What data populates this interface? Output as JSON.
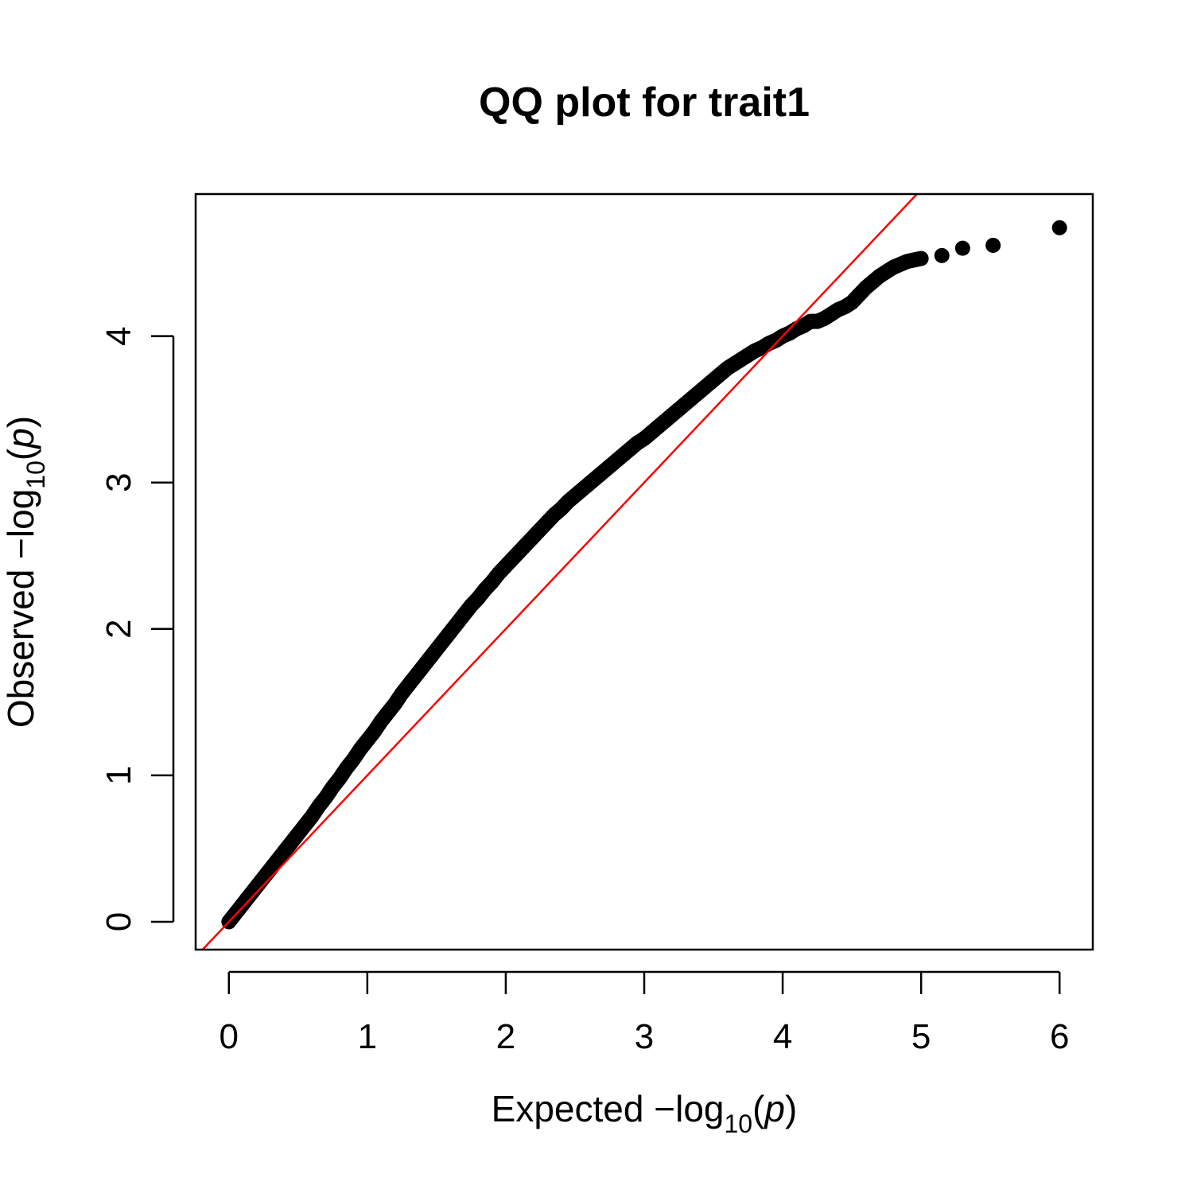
{
  "chart_data": {
    "type": "scatter",
    "title": "QQ plot for trait1",
    "xlabel": {
      "prefix": "Expected  −log",
      "sub": "10",
      "open": "(",
      "var": "p",
      "close": ")"
    },
    "ylabel": {
      "prefix": "Observed  −log",
      "sub": "10",
      "open": "(",
      "var": "p",
      "close": ")"
    },
    "xlim": [
      -0.24,
      6.24
    ],
    "ylim": [
      -0.19,
      4.97
    ],
    "xticks": [
      "0",
      "1",
      "2",
      "3",
      "4",
      "5",
      "6"
    ],
    "yticks": [
      "0",
      "1",
      "2",
      "3",
      "4"
    ],
    "grid": false,
    "reference_line": {
      "slope": 1,
      "intercept": 0,
      "color": "#ff0000"
    },
    "point_color": "#000000",
    "series": [
      {
        "x": [
          0,
          0.05,
          0.1,
          0.15,
          0.2,
          0.25,
          0.3,
          0.35,
          0.4,
          0.45,
          0.5,
          0.55,
          0.6,
          0.65,
          0.7,
          0.75,
          0.8,
          0.85,
          0.9,
          0.95,
          1.0,
          1.05,
          1.1,
          1.15,
          1.2,
          1.25,
          1.3,
          1.35,
          1.4,
          1.45,
          1.5,
          1.55,
          1.6,
          1.65,
          1.7,
          1.75,
          1.8,
          1.85,
          1.9,
          1.95,
          2.0,
          2.05,
          2.1,
          2.15,
          2.2,
          2.25,
          2.3,
          2.35,
          2.4,
          2.45,
          2.5,
          2.55,
          2.6,
          2.65,
          2.7,
          2.75,
          2.8,
          2.85,
          2.9,
          2.95,
          3.0,
          3.05,
          3.1,
          3.15,
          3.2,
          3.25,
          3.3,
          3.35,
          3.4,
          3.45,
          3.5,
          3.55,
          3.6,
          3.65,
          3.7,
          3.75,
          3.8,
          3.85,
          3.9,
          3.95,
          4.0,
          4.05,
          4.1,
          4.15,
          4.2,
          4.25,
          4.3,
          4.35,
          4.4,
          4.45,
          4.5,
          4.55,
          4.6,
          4.65,
          4.7,
          4.75,
          4.8,
          4.85,
          4.9,
          4.95,
          5.0,
          5.15,
          5.3,
          5.52,
          6.0
        ],
        "y": [
          0,
          0.06,
          0.12,
          0.18,
          0.24,
          0.3,
          0.36,
          0.42,
          0.48,
          0.54,
          0.6,
          0.66,
          0.72,
          0.79,
          0.85,
          0.92,
          0.98,
          1.05,
          1.11,
          1.18,
          1.24,
          1.3,
          1.37,
          1.43,
          1.49,
          1.56,
          1.62,
          1.68,
          1.74,
          1.8,
          1.86,
          1.92,
          1.98,
          2.04,
          2.1,
          2.16,
          2.21,
          2.27,
          2.32,
          2.38,
          2.43,
          2.48,
          2.53,
          2.58,
          2.63,
          2.68,
          2.73,
          2.78,
          2.82,
          2.87,
          2.91,
          2.95,
          2.99,
          3.03,
          3.07,
          3.11,
          3.15,
          3.19,
          3.23,
          3.27,
          3.3,
          3.34,
          3.38,
          3.42,
          3.46,
          3.5,
          3.54,
          3.58,
          3.62,
          3.66,
          3.7,
          3.74,
          3.78,
          3.81,
          3.84,
          3.87,
          3.9,
          3.92,
          3.95,
          3.97,
          4.0,
          4.02,
          4.05,
          4.07,
          4.1,
          4.1,
          4.12,
          4.15,
          4.18,
          4.2,
          4.23,
          4.28,
          4.33,
          4.37,
          4.41,
          4.44,
          4.47,
          4.49,
          4.51,
          4.52,
          4.53,
          4.55,
          4.6,
          4.62,
          4.74
        ]
      }
    ]
  }
}
